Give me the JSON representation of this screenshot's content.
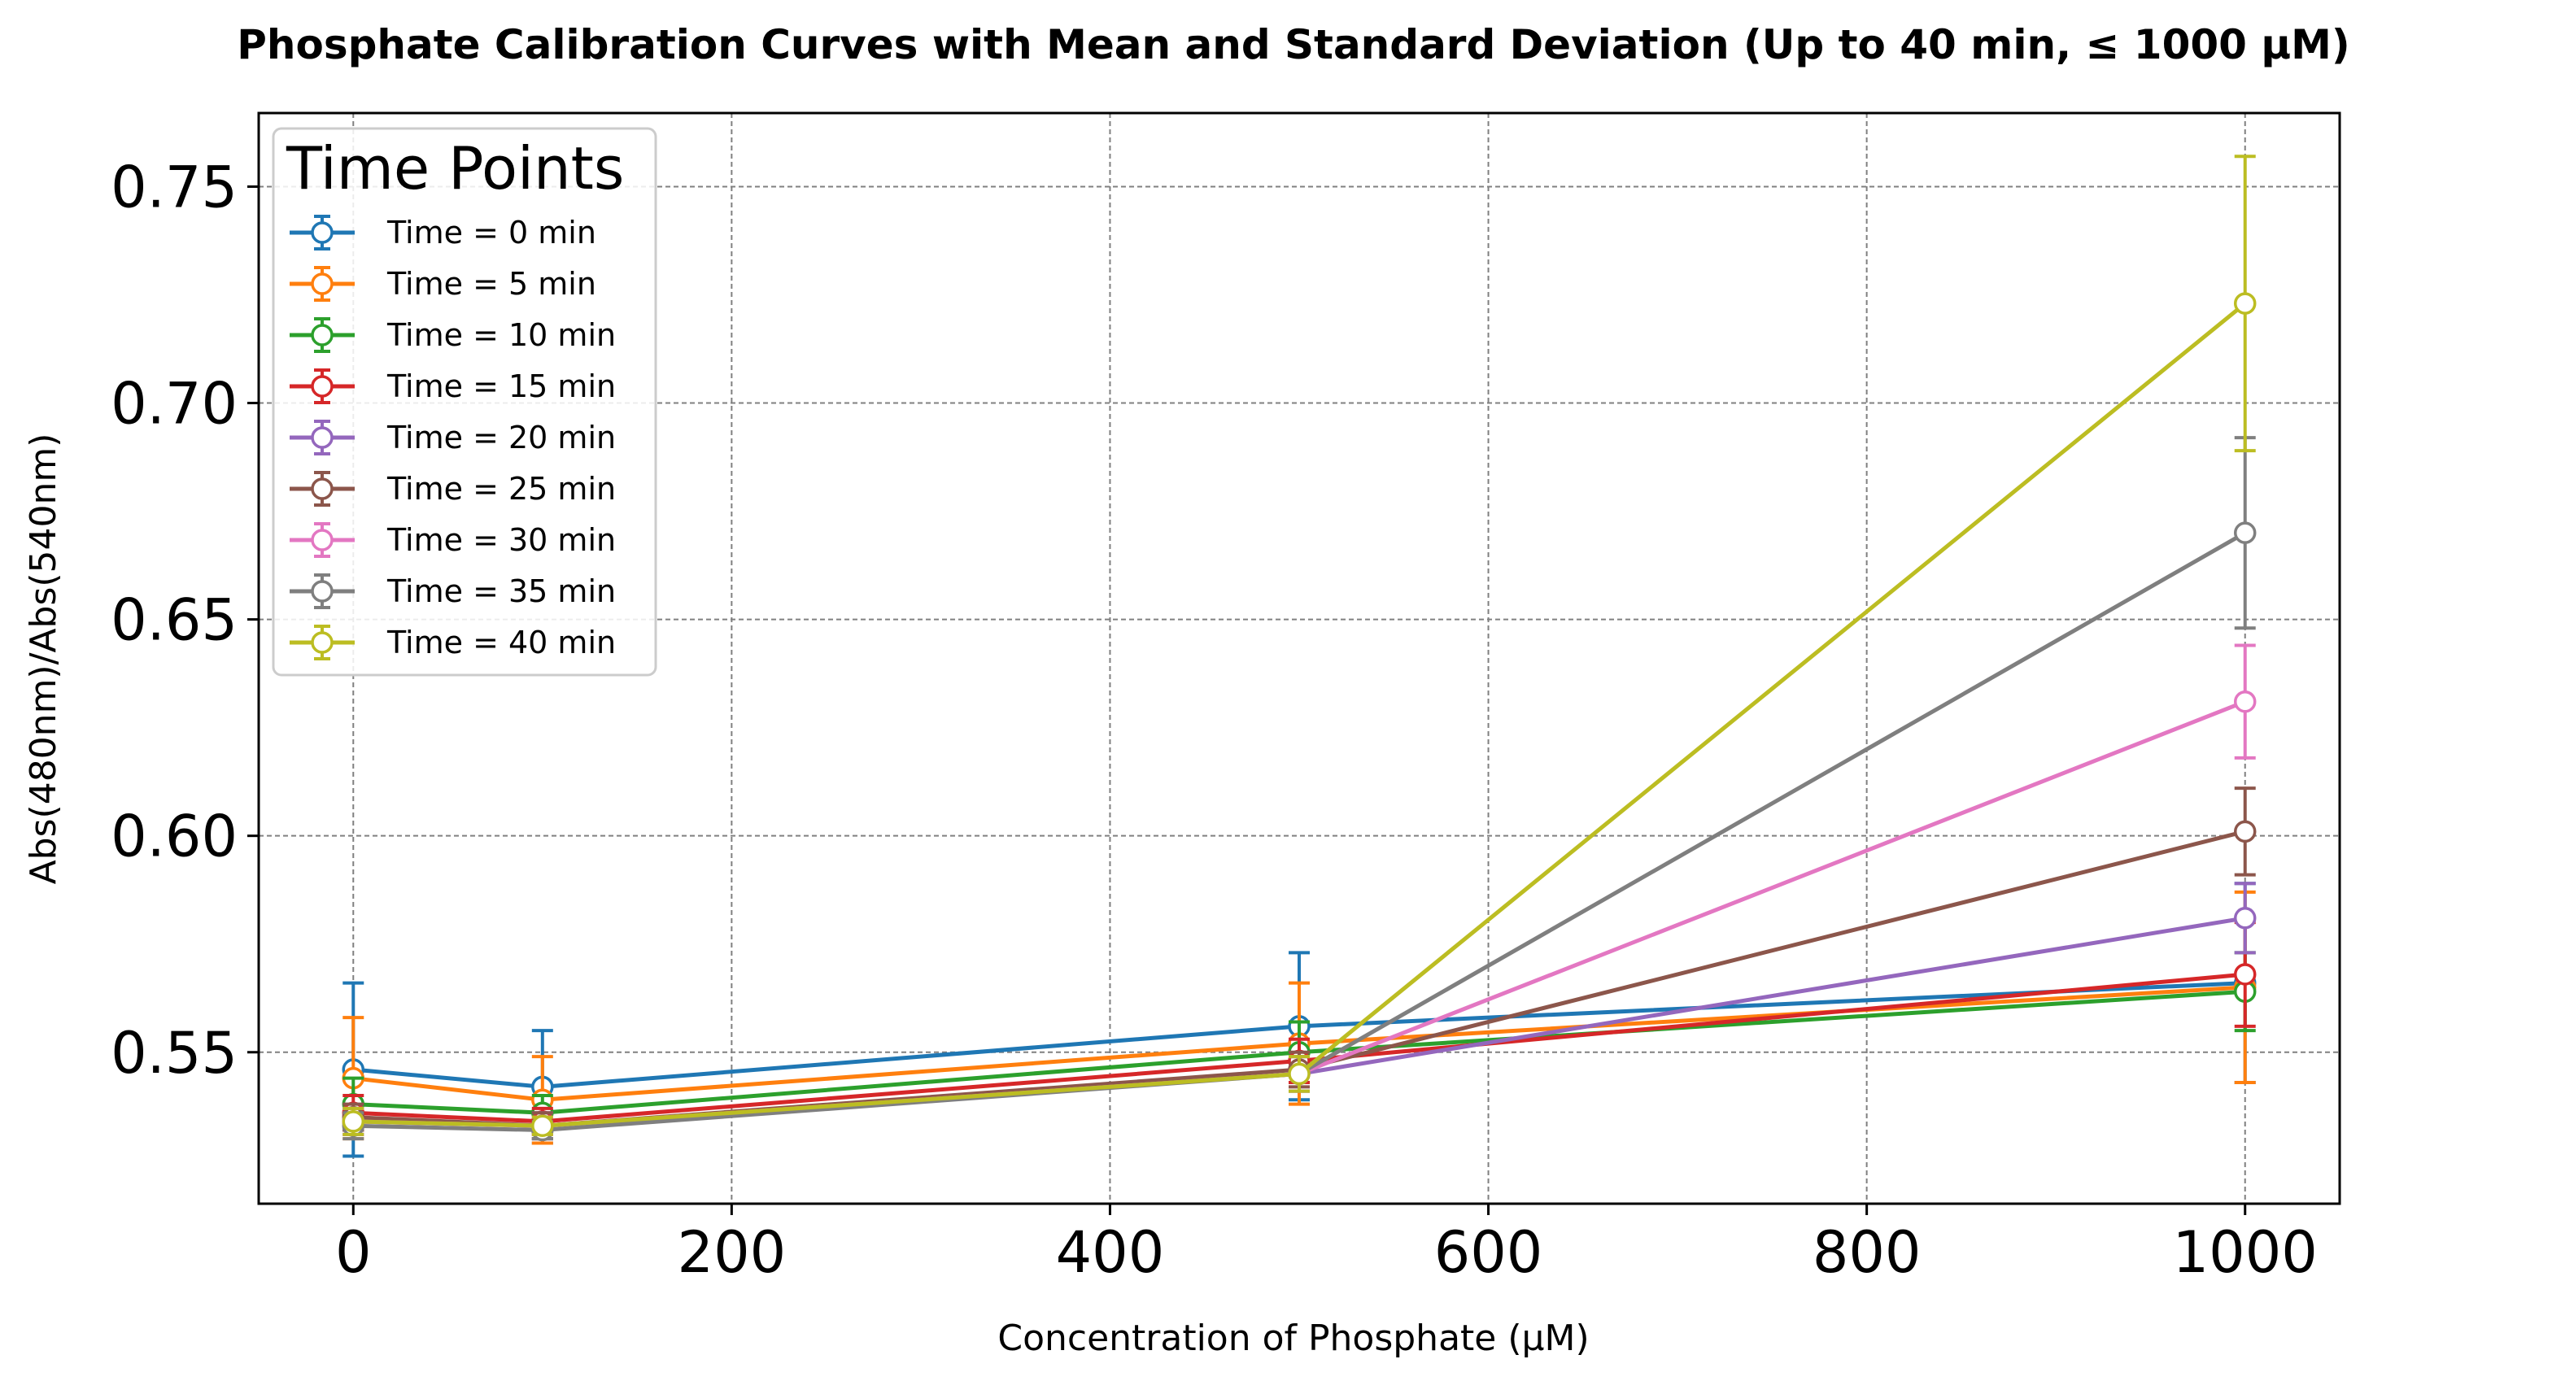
{
  "chart_data": {
    "type": "line",
    "title": "Phosphate Calibration Curves with Mean and Standard Deviation (Up to 40 min, ≤ 1000 µM)",
    "xlabel": "Concentration of Phosphate (µM)",
    "ylabel": "Abs(480nm)/Abs(540nm)",
    "xlim": [
      -50,
      1050
    ],
    "ylim": [
      0.515,
      0.767
    ],
    "xticks": [
      0,
      200,
      400,
      600,
      800,
      1000
    ],
    "yticks": [
      0.55,
      0.6,
      0.65,
      0.7,
      0.75
    ],
    "xtick_labels": [
      "0",
      "200",
      "400",
      "600",
      "800",
      "1000"
    ],
    "ytick_labels": [
      "0.55",
      "0.60",
      "0.65",
      "0.70",
      "0.75"
    ],
    "grid": true,
    "legend": {
      "title": "Time Points",
      "position": "top-left"
    },
    "x": [
      0,
      100,
      500,
      1000
    ],
    "series": [
      {
        "name": "Time = 0 min",
        "color": "#1f77b4",
        "values": [
          0.546,
          0.542,
          0.556,
          0.566
        ],
        "errors": [
          0.02,
          0.013,
          0.017,
          0.023
        ]
      },
      {
        "name": "Time = 5 min",
        "color": "#ff7f0e",
        "values": [
          0.544,
          0.539,
          0.552,
          0.565
        ],
        "errors": [
          0.014,
          0.01,
          0.014,
          0.022
        ]
      },
      {
        "name": "Time = 10 min",
        "color": "#2ca02c",
        "values": [
          0.538,
          0.536,
          0.55,
          0.564
        ],
        "errors": [
          0.006,
          0.004,
          0.007,
          0.009
        ]
      },
      {
        "name": "Time = 15 min",
        "color": "#d62728",
        "values": [
          0.536,
          0.534,
          0.548,
          0.568
        ],
        "errors": [
          0.004,
          0.003,
          0.005,
          0.012
        ]
      },
      {
        "name": "Time = 20 min",
        "color": "#9467bd",
        "values": [
          0.534,
          0.533,
          0.545,
          0.581
        ],
        "errors": [
          0.003,
          0.003,
          0.004,
          0.008
        ]
      },
      {
        "name": "Time = 25 min",
        "color": "#8c564b",
        "values": [
          0.535,
          0.533,
          0.546,
          0.601
        ],
        "errors": [
          0.003,
          0.003,
          0.004,
          0.01
        ]
      },
      {
        "name": "Time = 30 min",
        "color": "#e377c2",
        "values": [
          0.534,
          0.533,
          0.545,
          0.631
        ],
        "errors": [
          0.003,
          0.002,
          0.004,
          0.013
        ]
      },
      {
        "name": "Time = 35 min",
        "color": "#7f7f7f",
        "values": [
          0.533,
          0.532,
          0.545,
          0.67
        ],
        "errors": [
          0.003,
          0.002,
          0.004,
          0.022
        ]
      },
      {
        "name": "Time = 40 min",
        "color": "#bcbd22",
        "values": [
          0.534,
          0.533,
          0.545,
          0.723
        ],
        "errors": [
          0.003,
          0.002,
          0.004,
          0.034
        ]
      }
    ]
  }
}
